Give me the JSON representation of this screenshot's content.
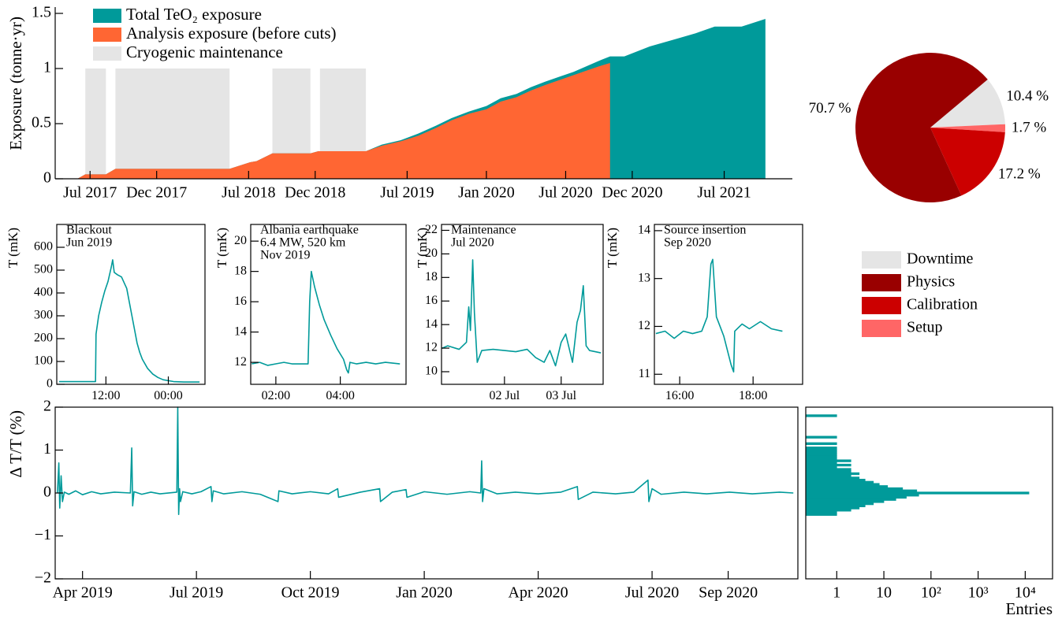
{
  "chart_data": [
    {
      "type": "area",
      "y_label": "Exposure (tonne·yr)",
      "x": [
        2017.42,
        2017.47,
        2017.6,
        2017.66,
        2018.38,
        2018.51,
        2018.55,
        2018.65,
        2018.89,
        2018.94,
        2019.24,
        2019.34,
        2019.46,
        2019.57,
        2019.68,
        2019.78,
        2019.89,
        2020.0,
        2020.09,
        2020.19,
        2020.28,
        2020.37,
        2020.47,
        2020.55,
        2020.63,
        2020.71,
        2020.78,
        2020.87,
        2021.03,
        2021.2,
        2021.32,
        2021.44,
        2021.61,
        2021.76
      ],
      "series": [
        {
          "name": "Total TeO₂ exposure",
          "color": "#009a9a",
          "values": [
            0,
            0.04,
            0.04,
            0.09,
            0.09,
            0.15,
            0.16,
            0.23,
            0.23,
            0.25,
            0.25,
            0.31,
            0.35,
            0.41,
            0.48,
            0.55,
            0.61,
            0.66,
            0.73,
            0.77,
            0.83,
            0.88,
            0.93,
            0.97,
            1.02,
            1.07,
            1.11,
            1.11,
            1.2,
            1.27,
            1.32,
            1.38,
            1.38,
            1.45
          ]
        },
        {
          "name": "Analysis exposure (before cuts)",
          "color": "#ff6633",
          "values": [
            0,
            0.04,
            0.04,
            0.09,
            0.09,
            0.15,
            0.16,
            0.23,
            0.23,
            0.25,
            0.25,
            0.3,
            0.34,
            0.39,
            0.46,
            0.53,
            0.59,
            0.63,
            0.7,
            0.74,
            0.8,
            0.85,
            0.9,
            0.94,
            0.98,
            1.02,
            1.05,
            null,
            null,
            null,
            null,
            null,
            null,
            null
          ]
        }
      ],
      "shaded": {
        "name": "Cryogenic maintenance",
        "color": "#e5e5e5",
        "height": 1,
        "spans": [
          [
            2017.47,
            2017.6
          ],
          [
            2017.66,
            2018.38
          ],
          [
            2018.65,
            2018.89
          ],
          [
            2018.95,
            2019.24
          ]
        ]
      },
      "xlim": [
        2017.28,
        2021.93
      ],
      "ylim": [
        0,
        1.5
      ],
      "xticks": [
        {
          "value": 2017.5,
          "label": "Jul 2017"
        },
        {
          "value": 2017.92,
          "label": "Dec 2017"
        },
        {
          "value": 2018.5,
          "label": "Jul 2018"
        },
        {
          "value": 2018.92,
          "label": "Dec 2018"
        },
        {
          "value": 2019.5,
          "label": "Jul 2019"
        },
        {
          "value": 2020.0,
          "label": "Jan 2020"
        },
        {
          "value": 2020.5,
          "label": "Jul 2020"
        },
        {
          "value": 2020.92,
          "label": "Dec 2020"
        },
        {
          "value": 2021.5,
          "label": "Jul 2021"
        }
      ],
      "yticks": [
        0,
        0.5,
        1,
        1.5
      ]
    },
    {
      "type": "pie",
      "categories": [
        "Downtime",
        "Physics",
        "Calibration",
        "Setup"
      ],
      "values": [
        10.4,
        70.7,
        17.2,
        1.7
      ],
      "value_labels": [
        "10.4 %",
        "70.7 %",
        "17.2 %",
        "1.7 %"
      ],
      "colors": [
        "#e5e5e5",
        "#990000",
        "#cc0000",
        "#ff6666"
      ]
    },
    {
      "type": "line",
      "annotation": [
        "Blackout",
        "Jun 2019"
      ],
      "y_label": "T (mK)",
      "x": [
        3,
        10,
        10.1,
        10.6,
        11.2,
        11.8,
        12.4,
        13.0,
        13.3,
        13.6,
        14.2,
        15.0,
        15.6,
        16.0,
        16.5,
        17.0,
        17.5,
        18.0,
        18.5,
        19.0,
        20.0,
        21.0,
        22.0,
        23.0,
        25.0,
        27.0,
        30.0
      ],
      "series": [
        {
          "color": "#009a9a",
          "values": [
            12,
            12,
            220,
            300,
            360,
            410,
            450,
            510,
            545,
            490,
            480,
            470,
            440,
            420,
            360,
            300,
            240,
            180,
            140,
            110,
            70,
            45,
            30,
            20,
            12,
            10,
            10
          ]
        }
      ],
      "xlim": [
        2.55,
        31.05
      ],
      "ylim": [
        0,
        700
      ],
      "xticks": [
        {
          "value": 12,
          "label": "12:00"
        },
        {
          "value": 24,
          "label": "00:00"
        }
      ],
      "yticks": [
        0,
        100,
        200,
        300,
        400,
        500,
        600
      ]
    },
    {
      "type": "line",
      "annotation": [
        "Albania earthquake",
        "6.4 MW, 520 km",
        "Nov 2019"
      ],
      "y_label": "T (mK)",
      "x": [
        1.25,
        1.5,
        1.75,
        2.0,
        2.25,
        2.5,
        2.75,
        3.0,
        3.05,
        3.1,
        3.2,
        3.35,
        3.5,
        3.7,
        3.9,
        4.1,
        4.2,
        4.25,
        4.3,
        4.5,
        4.8,
        5.1,
        5.4,
        5.85
      ],
      "series": [
        {
          "color": "#009a9a",
          "values": [
            11.9,
            12.0,
            11.8,
            11.9,
            12.0,
            11.9,
            11.9,
            11.9,
            16,
            18,
            17,
            15.8,
            14.8,
            13.8,
            12.9,
            12.2,
            11.5,
            11.3,
            12.0,
            11.9,
            12.0,
            11.9,
            12.0,
            11.9
          ]
        }
      ],
      "xlim": [
        1.22,
        6.04
      ],
      "ylim": [
        10.55,
        21.1
      ],
      "xticks": [
        {
          "value": 2,
          "label": "02:00"
        },
        {
          "value": 4,
          "label": "04:00"
        }
      ],
      "yticks": [
        12,
        14,
        16,
        18,
        20
      ]
    },
    {
      "type": "line",
      "annotation": [
        "Maintenance",
        "Jul 2020"
      ],
      "y_label": "T (mK)",
      "x": [
        0.9,
        1.0,
        1.2,
        1.33,
        1.37,
        1.4,
        1.44,
        1.47,
        1.52,
        1.6,
        1.8,
        2.0,
        2.2,
        2.4,
        2.55,
        2.7,
        2.8,
        2.9,
        3.0,
        3.08,
        3.2,
        3.28,
        3.34,
        3.39,
        3.44,
        3.5,
        3.7
      ],
      "series": [
        {
          "color": "#009a9a",
          "values": [
            12.0,
            12.2,
            11.9,
            12.5,
            15.5,
            13.5,
            19.5,
            15,
            10.8,
            11.8,
            11.9,
            11.8,
            11.7,
            11.9,
            11.2,
            10.8,
            11.8,
            10.5,
            12.5,
            13.2,
            10.8,
            14.2,
            15.2,
            17.3,
            12.2,
            11.8,
            11.6
          ]
        }
      ],
      "xlim": [
        0.89,
        3.74
      ],
      "ylim": [
        8.93,
        22.5
      ],
      "xticks": [
        {
          "value": 2,
          "label": "02 Jul"
        },
        {
          "value": 3,
          "label": "03 Jul"
        }
      ],
      "yticks": [
        10,
        12,
        14,
        16,
        18,
        20,
        22
      ]
    },
    {
      "type": "line",
      "annotation": [
        "Source insertion",
        "Sep 2020"
      ],
      "y_label": "T (mK)",
      "x": [
        15.35,
        15.6,
        15.85,
        16.1,
        16.35,
        16.6,
        16.75,
        16.85,
        16.9,
        17.0,
        17.1,
        17.2,
        17.3,
        17.4,
        17.47,
        17.5,
        17.7,
        17.9,
        18.2,
        18.5,
        18.8
      ],
      "series": [
        {
          "color": "#009a9a",
          "values": [
            11.85,
            11.9,
            11.75,
            11.9,
            11.85,
            11.9,
            12.2,
            13.3,
            13.4,
            12.2,
            12.0,
            11.8,
            11.5,
            11.2,
            11.05,
            11.9,
            12.05,
            11.95,
            12.1,
            11.95,
            11.9
          ]
        }
      ],
      "xlim": [
        15.31,
        19.35
      ],
      "ylim": [
        10.79,
        14.13
      ],
      "xticks": [
        {
          "value": 16,
          "label": "16:00"
        },
        {
          "value": 18,
          "label": "18:00"
        }
      ],
      "yticks": [
        11,
        12,
        13,
        14
      ]
    },
    {
      "type": "line",
      "y_label": "Δ T/T (%)",
      "x": [
        2019.195,
        2019.198,
        2019.2,
        2019.203,
        2019.206,
        2019.21,
        2019.22,
        2019.235,
        2019.25,
        2019.27,
        2019.29,
        2019.32,
        2019.355,
        2019.358,
        2019.36,
        2019.363,
        2019.38,
        2019.4,
        2019.42,
        2019.457,
        2019.459,
        2019.461,
        2019.463,
        2019.465,
        2019.47,
        2019.49,
        2019.51,
        2019.532,
        2019.534,
        2019.537,
        2019.56,
        2019.6,
        2019.64,
        2019.679,
        2019.681,
        2019.71,
        2019.75,
        2019.79,
        2019.81,
        2019.812,
        2019.86,
        2019.902,
        2019.904,
        2019.93,
        2019.96,
        2019.962,
        2020.0,
        2020.05,
        2020.1,
        2020.124,
        2020.126,
        2020.128,
        2020.131,
        2020.16,
        2020.2,
        2020.25,
        2020.3,
        2020.336,
        2020.338,
        2020.37,
        2020.42,
        2020.46,
        2020.491,
        2020.493,
        2020.5,
        2020.52,
        2020.57,
        2020.62,
        2020.67,
        2020.72,
        2020.78,
        2020.81
      ],
      "series": [
        {
          "color": "#009a9a",
          "values": [
            0,
            0.7,
            -0.35,
            0.4,
            -0.2,
            0.02,
            -0.03,
            0.05,
            -0.04,
            0.03,
            -0.02,
            0.02,
            0,
            1.05,
            -0.3,
            0.03,
            -0.03,
            0.02,
            -0.02,
            0.02,
            2,
            -0.5,
            0.1,
            -0.2,
            0.03,
            -0.02,
            0.03,
            0.15,
            -0.2,
            0.05,
            -0.02,
            0.03,
            -0.03,
            -0.2,
            0.05,
            -0.02,
            0.03,
            -0.02,
            0.1,
            -0.1,
            0.02,
            0.1,
            -0.2,
            0.02,
            0.08,
            -0.1,
            0.03,
            -0.03,
            0.03,
            0,
            0.75,
            -0.2,
            0.1,
            -0.02,
            0.02,
            -0.02,
            0.02,
            0.15,
            -0.15,
            0.02,
            -0.02,
            0.02,
            0.3,
            -0.2,
            0.1,
            -0.03,
            0.02,
            -0.02,
            0.02,
            -0.02,
            0.02,
            0
          ]
        }
      ],
      "xlim": [
        2019.19,
        2020.82
      ],
      "ylim": [
        -2,
        2
      ],
      "xticks": [
        {
          "value": 2019.25,
          "label": "Apr 2019"
        },
        {
          "value": 2019.5,
          "label": "Jul 2019"
        },
        {
          "value": 2019.75,
          "label": "Oct 2019"
        },
        {
          "value": 2020.0,
          "label": "Jan 2020"
        },
        {
          "value": 2020.25,
          "label": "Apr 2020"
        },
        {
          "value": 2020.5,
          "label": "Jul 2020"
        },
        {
          "value": 2020.667,
          "label": "Sep 2020"
        }
      ],
      "yticks": [
        {
          "value": -2,
          "label": "−2"
        },
        {
          "value": -1,
          "label": "−1"
        },
        0,
        1,
        2
      ]
    },
    {
      "type": "histogram",
      "orientation": "horizontal",
      "x_label": "Entries",
      "xscale": "log",
      "color": "#009a9a",
      "bins": [
        -0.525,
        -0.475,
        -0.425,
        -0.375,
        -0.325,
        -0.275,
        -0.225,
        -0.175,
        -0.125,
        -0.075,
        -0.025,
        0.025,
        0.075,
        0.125,
        0.175,
        0.225,
        0.275,
        0.325,
        0.375,
        0.425,
        0.475,
        0.525,
        0.575,
        0.625,
        0.675,
        0.725,
        0.775,
        0.825,
        0.875,
        0.925,
        0.975,
        1.025,
        1.075,
        1.125,
        1.175,
        1.225,
        1.275,
        1.325,
        1.375,
        1.425,
        1.475,
        1.525,
        1.575,
        1.625,
        1.675,
        1.725,
        1.775,
        1.825,
        1.875
      ],
      "values": [
        1,
        1,
        2,
        3,
        4,
        6,
        10,
        18,
        30,
        55,
        12000,
        50,
        25,
        12,
        8,
        6,
        4,
        3,
        2,
        3,
        2,
        2,
        1,
        2,
        1,
        2,
        1,
        1,
        1,
        1,
        1,
        1,
        0,
        1,
        0,
        0,
        1,
        0,
        0,
        0,
        0,
        0,
        0,
        0,
        0,
        0,
        1,
        0
      ],
      "xlim": [
        0.22,
        38000
      ],
      "ylim": [
        -2,
        2
      ],
      "xticks": [
        1,
        10,
        {
          "value": 100,
          "label": "10²"
        },
        {
          "value": 1000,
          "label": "10³"
        },
        {
          "value": 10000,
          "label": "10⁴"
        }
      ]
    }
  ]
}
